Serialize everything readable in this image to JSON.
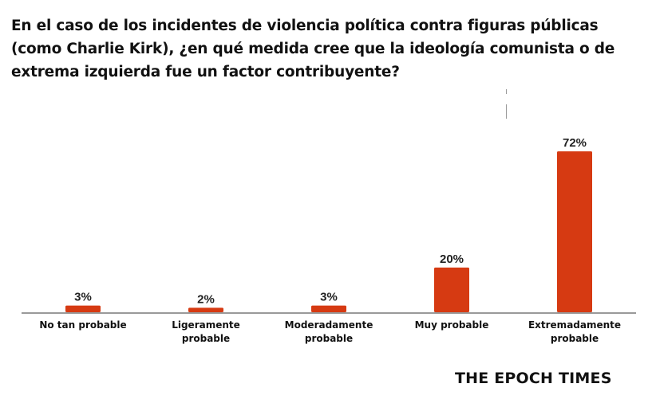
{
  "chart_data": {
    "type": "bar",
    "title": "En el caso de los incidentes de violencia política contra figuras públicas (como Charlie Kirk), ¿en qué medida cree que la ideología comunista o de extrema izquierda fue un factor contribuyente?",
    "categories": [
      [
        "No tan probable"
      ],
      [
        "Ligeramente",
        "probable"
      ],
      [
        "Moderadamente",
        "probable"
      ],
      [
        "Muy probable"
      ],
      [
        "Extremadamente",
        "probable"
      ]
    ],
    "values": [
      3,
      2,
      3,
      20,
      72
    ],
    "data_labels": [
      "3%",
      "2%",
      "3%",
      "20%",
      "72%"
    ],
    "xlabel": "",
    "ylabel": "",
    "ylim": [
      0,
      72
    ],
    "grid": false,
    "legend": "none",
    "bar_color": "#d63a12"
  },
  "source": "THE EPOCH TIMES"
}
